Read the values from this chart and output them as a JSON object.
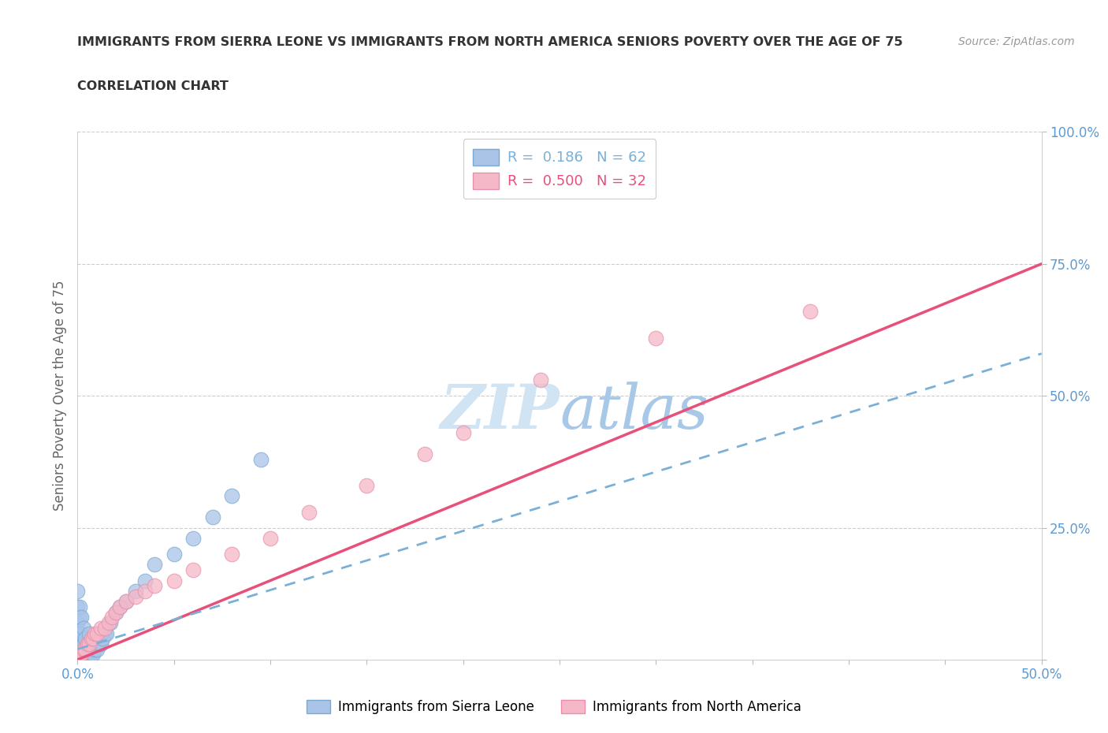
{
  "title": "IMMIGRANTS FROM SIERRA LEONE VS IMMIGRANTS FROM NORTH AMERICA SENIORS POVERTY OVER THE AGE OF 75",
  "subtitle": "CORRELATION CHART",
  "source": "Source: ZipAtlas.com",
  "ylabel": "Seniors Poverty Over the Age of 75",
  "xlim": [
    0.0,
    0.5
  ],
  "ylim": [
    0.0,
    1.0
  ],
  "color_sierra": "#aac4e8",
  "color_sierra_edge": "#7aaad4",
  "color_na": "#f5b8c8",
  "color_na_edge": "#e890aa",
  "color_line_sierra": "#7ab0d8",
  "color_line_na": "#e8507a",
  "background_color": "#ffffff",
  "grid_color": "#cccccc",
  "watermark_color": "#d0e4f4",
  "tick_color": "#5b9bd5",
  "title_color": "#333333",
  "ylabel_color": "#666666",
  "source_color": "#999999",
  "sierra_leone_x": [
    0.0,
    0.0,
    0.0,
    0.0,
    0.0,
    0.0,
    0.0,
    0.0,
    0.0,
    0.0,
    0.001,
    0.001,
    0.001,
    0.001,
    0.001,
    0.001,
    0.001,
    0.001,
    0.002,
    0.002,
    0.002,
    0.002,
    0.002,
    0.002,
    0.003,
    0.003,
    0.003,
    0.003,
    0.003,
    0.004,
    0.004,
    0.004,
    0.004,
    0.005,
    0.005,
    0.005,
    0.006,
    0.006,
    0.006,
    0.007,
    0.007,
    0.008,
    0.008,
    0.009,
    0.01,
    0.011,
    0.012,
    0.013,
    0.014,
    0.015,
    0.017,
    0.02,
    0.022,
    0.025,
    0.03,
    0.035,
    0.04,
    0.05,
    0.06,
    0.07,
    0.08,
    0.095
  ],
  "sierra_leone_y": [
    0.0,
    0.0,
    0.0,
    0.01,
    0.02,
    0.03,
    0.05,
    0.07,
    0.1,
    0.13,
    0.0,
    0.0,
    0.01,
    0.02,
    0.03,
    0.05,
    0.08,
    0.1,
    0.0,
    0.01,
    0.02,
    0.03,
    0.05,
    0.08,
    0.0,
    0.01,
    0.02,
    0.03,
    0.06,
    0.0,
    0.01,
    0.02,
    0.04,
    0.0,
    0.01,
    0.03,
    0.0,
    0.02,
    0.05,
    0.01,
    0.03,
    0.01,
    0.03,
    0.02,
    0.02,
    0.03,
    0.03,
    0.04,
    0.05,
    0.05,
    0.07,
    0.09,
    0.1,
    0.11,
    0.13,
    0.15,
    0.18,
    0.2,
    0.23,
    0.27,
    0.31,
    0.38
  ],
  "north_america_x": [
    0.0,
    0.001,
    0.002,
    0.003,
    0.004,
    0.005,
    0.006,
    0.007,
    0.008,
    0.009,
    0.01,
    0.012,
    0.014,
    0.016,
    0.018,
    0.02,
    0.022,
    0.025,
    0.03,
    0.035,
    0.04,
    0.05,
    0.06,
    0.08,
    0.1,
    0.12,
    0.15,
    0.18,
    0.2,
    0.24,
    0.3,
    0.38
  ],
  "north_america_y": [
    0.0,
    0.01,
    0.01,
    0.02,
    0.02,
    0.03,
    0.03,
    0.04,
    0.04,
    0.05,
    0.05,
    0.06,
    0.06,
    0.07,
    0.08,
    0.09,
    0.1,
    0.11,
    0.12,
    0.13,
    0.14,
    0.15,
    0.17,
    0.2,
    0.23,
    0.28,
    0.33,
    0.39,
    0.43,
    0.53,
    0.61,
    0.66
  ],
  "na_line_x0": 0.0,
  "na_line_y0": 0.0,
  "na_line_x1": 0.5,
  "na_line_y1": 0.75,
  "sl_line_x0": 0.0,
  "sl_line_y0": 0.02,
  "sl_line_x1": 0.5,
  "sl_line_y1": 0.58
}
